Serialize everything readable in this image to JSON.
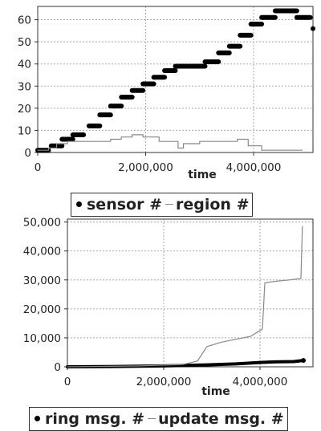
{
  "chart_data": [
    {
      "type": "line",
      "xlabel": "time",
      "xlim": [
        0,
        5100000
      ],
      "ylim": [
        0,
        66
      ],
      "xticks": [
        "0",
        "2,000,000",
        "4,000,000"
      ],
      "yticks": [
        "0",
        "10",
        "20",
        "30",
        "40",
        "50",
        "60"
      ],
      "grid": true,
      "legend_position": "bottom-center",
      "series": [
        {
          "name": "sensor #",
          "style": "thick-black-steps",
          "color": "#000000",
          "segments": [
            [
              0,
              200000,
              1
            ],
            [
              250000,
              450000,
              3
            ],
            [
              450000,
              650000,
              6
            ],
            [
              650000,
              850000,
              8
            ],
            [
              950000,
              1150000,
              12
            ],
            [
              1150000,
              1350000,
              17
            ],
            [
              1350000,
              1550000,
              21
            ],
            [
              1550000,
              1750000,
              25
            ],
            [
              1750000,
              1950000,
              28
            ],
            [
              1950000,
              2150000,
              31
            ],
            [
              2150000,
              2350000,
              34
            ],
            [
              2350000,
              2550000,
              37
            ],
            [
              2550000,
              3100000,
              39
            ],
            [
              3100000,
              3350000,
              41
            ],
            [
              3350000,
              3550000,
              45
            ],
            [
              3550000,
              3750000,
              48
            ],
            [
              3750000,
              3950000,
              53
            ],
            [
              3950000,
              4150000,
              58
            ],
            [
              4150000,
              4400000,
              61
            ],
            [
              4400000,
              4800000,
              64
            ],
            [
              4800000,
              5050000,
              61
            ]
          ],
          "points": [
            [
              5100000,
              56
            ]
          ]
        },
        {
          "name": "region #",
          "style": "thin-gray-line",
          "color": "#888888",
          "points": [
            [
              0,
              1
            ],
            [
              200000,
              1
            ],
            [
              200000,
              2
            ],
            [
              350000,
              2
            ],
            [
              350000,
              4
            ],
            [
              550000,
              4
            ],
            [
              550000,
              5
            ],
            [
              1350000,
              5
            ],
            [
              1350000,
              6
            ],
            [
              1550000,
              6
            ],
            [
              1550000,
              7
            ],
            [
              1750000,
              7
            ],
            [
              1750000,
              8
            ],
            [
              1950000,
              8
            ],
            [
              1950000,
              7
            ],
            [
              2250000,
              7
            ],
            [
              2250000,
              5
            ],
            [
              2600000,
              5
            ],
            [
              2600000,
              2
            ],
            [
              2700000,
              2
            ],
            [
              2700000,
              4
            ],
            [
              3000000,
              4
            ],
            [
              3000000,
              5
            ],
            [
              3700000,
              5
            ],
            [
              3700000,
              6
            ],
            [
              3900000,
              6
            ],
            [
              3900000,
              3
            ],
            [
              4150000,
              3
            ],
            [
              4150000,
              1
            ],
            [
              4900000,
              1
            ]
          ]
        }
      ]
    },
    {
      "type": "line",
      "xlabel": "time",
      "xlim": [
        0,
        5100000
      ],
      "ylim": [
        0,
        51000
      ],
      "xticks": [
        "0",
        "2,000,000",
        "4,000,000"
      ],
      "yticks": [
        "0",
        "10,000",
        "20,000",
        "30,000",
        "40,000",
        "50,000"
      ],
      "grid": true,
      "legend_position": "bottom-center",
      "series": [
        {
          "name": "ring msg. #",
          "style": "thick-black-line",
          "color": "#000000",
          "points": [
            [
              0,
              0
            ],
            [
              1000000,
              100
            ],
            [
              2000000,
              300
            ],
            [
              2800000,
              600
            ],
            [
              3500000,
              1000
            ],
            [
              4000000,
              1500
            ],
            [
              4300000,
              1700
            ],
            [
              4700000,
              1800
            ],
            [
              4900000,
              2200
            ]
          ]
        },
        {
          "name": "update msg. #",
          "style": "thin-gray-line",
          "color": "#888888",
          "points": [
            [
              0,
              0
            ],
            [
              1500000,
              300
            ],
            [
              2400000,
              800
            ],
            [
              2700000,
              2000
            ],
            [
              2900000,
              7000
            ],
            [
              3200000,
              8500
            ],
            [
              3500000,
              9500
            ],
            [
              3800000,
              10500
            ],
            [
              3950000,
              12000
            ],
            [
              4050000,
              13000
            ],
            [
              4100000,
              29000
            ],
            [
              4300000,
              29500
            ],
            [
              4600000,
              30000
            ],
            [
              4850000,
              30500
            ],
            [
              4880000,
              48500
            ]
          ]
        }
      ]
    }
  ]
}
